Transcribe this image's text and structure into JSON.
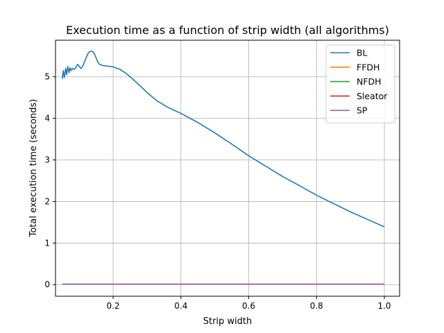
{
  "chart_data": {
    "type": "line",
    "title": "Execution time as a function of strip width (all algorithms)",
    "xlabel": "Strip width",
    "ylabel": "Total execution time (seconds)",
    "xlim": [
      0.03,
      1.045
    ],
    "ylim": [
      -0.28,
      5.88
    ],
    "x_ticks": [
      0.2,
      0.4,
      0.6,
      0.8,
      1.0
    ],
    "x_tick_labels": [
      "0.2",
      "0.4",
      "0.6",
      "0.8",
      "1.0"
    ],
    "y_ticks": [
      0,
      1,
      2,
      3,
      4,
      5
    ],
    "y_tick_labels": [
      "0",
      "1",
      "2",
      "3",
      "4",
      "5"
    ],
    "grid": true,
    "legend_position": "top-right",
    "series": [
      {
        "name": "BL",
        "color": "#1f77b4",
        "x": [
          0.05,
          0.053,
          0.056,
          0.06,
          0.063,
          0.066,
          0.07,
          0.073,
          0.076,
          0.08,
          0.085,
          0.09,
          0.095,
          0.1,
          0.105,
          0.11,
          0.115,
          0.12,
          0.125,
          0.13,
          0.135,
          0.14,
          0.145,
          0.15,
          0.155,
          0.16,
          0.17,
          0.18,
          0.2,
          0.22,
          0.24,
          0.26,
          0.28,
          0.3,
          0.33,
          0.36,
          0.4,
          0.45,
          0.5,
          0.55,
          0.6,
          0.65,
          0.7,
          0.75,
          0.8,
          0.85,
          0.9,
          0.95,
          1.0
        ],
        "y": [
          4.95,
          5.15,
          4.98,
          5.2,
          5.05,
          5.25,
          5.1,
          5.22,
          5.15,
          5.2,
          5.18,
          5.22,
          5.3,
          5.25,
          5.2,
          5.25,
          5.35,
          5.45,
          5.55,
          5.6,
          5.62,
          5.6,
          5.55,
          5.45,
          5.35,
          5.3,
          5.27,
          5.26,
          5.24,
          5.18,
          5.07,
          4.93,
          4.78,
          4.62,
          4.42,
          4.27,
          4.12,
          3.9,
          3.65,
          3.38,
          3.1,
          2.85,
          2.6,
          2.38,
          2.15,
          1.95,
          1.75,
          1.57,
          1.39
        ]
      },
      {
        "name": "FFDH",
        "color": "#ff7f0e",
        "x": [
          0.05,
          1.0
        ],
        "y": [
          0.01,
          0.01
        ]
      },
      {
        "name": "NFDH",
        "color": "#2ca02c",
        "x": [
          0.05,
          1.0
        ],
        "y": [
          0.01,
          0.01
        ]
      },
      {
        "name": "Sleator",
        "color": "#d62728",
        "x": [
          0.05,
          1.0
        ],
        "y": [
          0.01,
          0.01
        ]
      },
      {
        "name": "SP",
        "color": "#9467bd",
        "x": [
          0.05,
          1.0
        ],
        "y": [
          0.01,
          0.01
        ]
      }
    ]
  }
}
